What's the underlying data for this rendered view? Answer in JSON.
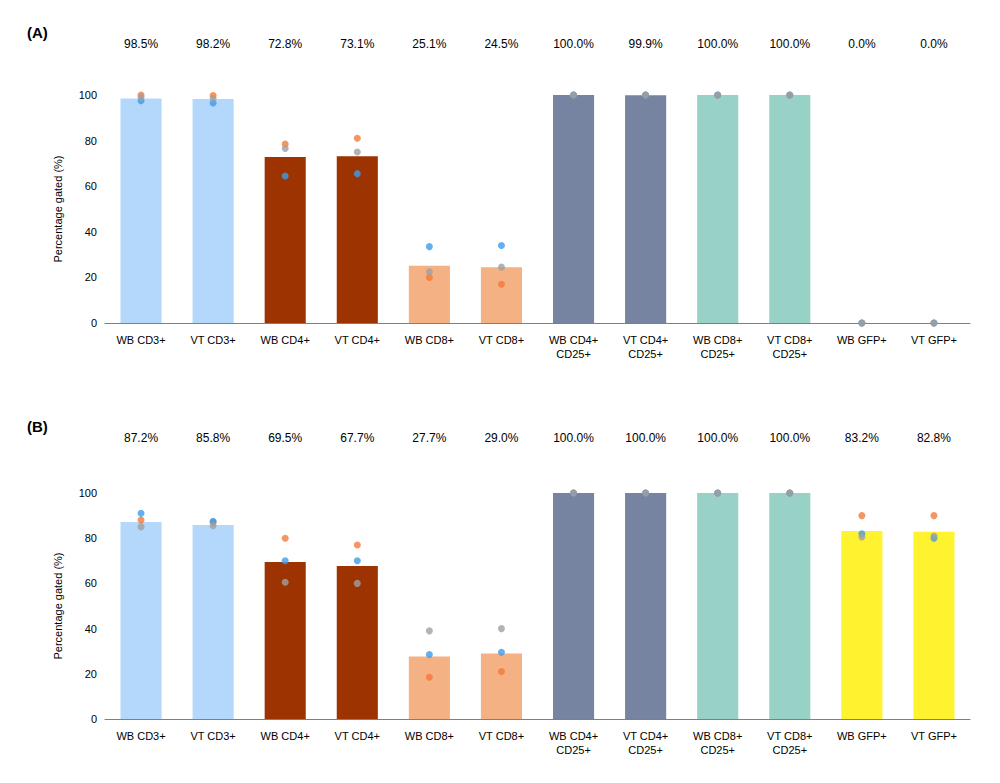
{
  "chart_data": [
    {
      "type": "bar",
      "title": "(A)",
      "y_label": "Percentage gated (%)",
      "categories": [
        "WB CD3+",
        "VT CD3+",
        "WB CD4+",
        "VT CD4+",
        "WB CD8+",
        "VT CD8+",
        "WB CD4+\nCD25+",
        "VT CD4+\nCD25+",
        "WB CD8+\nCD25+",
        "VT CD8+\nCD25+",
        "WB GFP+",
        "VT GFP+"
      ],
      "ylim": [
        0,
        100
      ],
      "yticks": [
        0,
        20,
        40,
        60,
        80,
        100
      ],
      "grid": false,
      "data_labels": true,
      "series": [
        {
          "type": "bar",
          "values": [
            98.5,
            98.2,
            72.8,
            73.1,
            25.1,
            24.5,
            100.0,
            99.9,
            100.0,
            100.0,
            0.0,
            0.0
          ],
          "value_labels": [
            "98.5%",
            "98.2%",
            "72.8%",
            "73.1%",
            "25.1%",
            "24.5%",
            "100.0%",
            "99.9%",
            "100.0%",
            "100.0%",
            "0.0%",
            "0.0%"
          ],
          "colors": [
            "#b4d8fb",
            "#b4d8fb",
            "#9c3300",
            "#9c3300",
            "#f4b183",
            "#f4b183",
            "#7684a2",
            "#7684a2",
            "#98d1c6",
            "#98d1c6",
            "#fff22f",
            "#fff22f"
          ]
        },
        {
          "type": "scatter",
          "marker": "circle",
          "color": "#f4793b",
          "values": [
            100,
            99.8,
            78.5,
            81,
            20,
            17,
            100,
            100,
            100,
            100,
            0,
            0
          ]
        },
        {
          "type": "scatter",
          "marker": "circle",
          "color": "#3d9be9",
          "values": [
            97.5,
            96.5,
            64.5,
            65.5,
            33.5,
            34,
            100,
            100,
            100,
            100,
            0,
            0
          ]
        },
        {
          "type": "scatter",
          "marker": "circle",
          "color": "#a0a0a0",
          "values": [
            99,
            98.5,
            76.5,
            75,
            22.5,
            24.5,
            100,
            100,
            100,
            100,
            0,
            0
          ]
        }
      ]
    },
    {
      "type": "bar",
      "title": "(B)",
      "y_label": "Percentage gated (%)",
      "categories": [
        "WB CD3+",
        "VT CD3+",
        "WB CD4+",
        "VT CD4+",
        "WB CD8+",
        "VT CD8+",
        "WB CD4+\nCD25+",
        "VT CD4+\nCD25+",
        "WB CD8+\nCD25+",
        "VT CD8+\nCD25+",
        "WB GFP+",
        "VT GFP+"
      ],
      "ylim": [
        0,
        100
      ],
      "yticks": [
        0,
        20,
        40,
        60,
        80,
        100
      ],
      "grid": false,
      "data_labels": true,
      "series": [
        {
          "type": "bar",
          "values": [
            87.2,
            85.8,
            69.5,
            67.7,
            27.7,
            29.0,
            100.0,
            100.0,
            100.0,
            100.0,
            83.2,
            82.8
          ],
          "value_labels": [
            "87.2%",
            "85.8%",
            "69.5%",
            "67.7%",
            "27.7%",
            "29.0%",
            "100.0%",
            "100.0%",
            "100.0%",
            "100.0%",
            "83.2%",
            "82.8%"
          ],
          "colors": [
            "#b4d8fb",
            "#b4d8fb",
            "#9c3300",
            "#9c3300",
            "#f4b183",
            "#f4b183",
            "#7684a2",
            "#7684a2",
            "#98d1c6",
            "#98d1c6",
            "#fff22f",
            "#fff22f"
          ]
        },
        {
          "type": "scatter",
          "marker": "circle",
          "color": "#f4793b",
          "values": [
            88,
            87,
            80,
            77,
            18.5,
            21,
            100,
            100,
            100,
            100,
            90,
            90
          ]
        },
        {
          "type": "scatter",
          "marker": "circle",
          "color": "#3d9be9",
          "values": [
            91,
            87.5,
            70,
            70,
            28.5,
            29.5,
            100,
            100,
            100,
            100,
            82,
            80
          ]
        },
        {
          "type": "scatter",
          "marker": "circle",
          "color": "#a0a0a0",
          "values": [
            85,
            85.5,
            60.5,
            60,
            39,
            40,
            100,
            100,
            100,
            100,
            80.5,
            81
          ]
        }
      ]
    }
  ]
}
